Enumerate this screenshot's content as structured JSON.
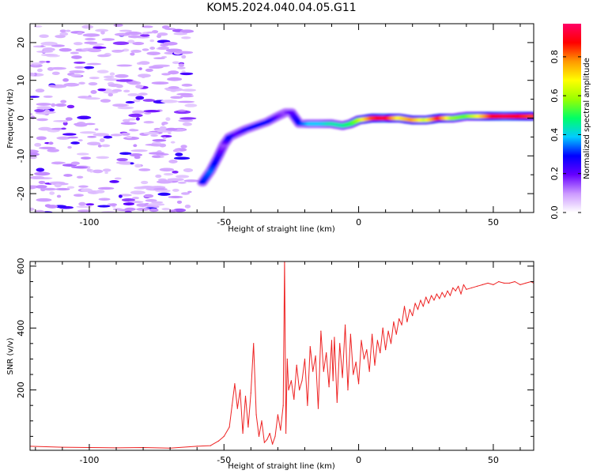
{
  "figure_title": "KOM5.2024.040.04.05.G11",
  "chart_data": [
    {
      "type": "heatmap",
      "title": "",
      "xlabel": "Height of straight line (km)",
      "ylabel": "Frequency (Hz)",
      "xlim": [
        -122,
        65
      ],
      "ylim": [
        -25,
        25
      ],
      "xticks": [
        -100,
        -50,
        0,
        50
      ],
      "yticks": [
        -20,
        -10,
        0,
        10,
        20
      ],
      "colorbar": {
        "label": "Normalized spectral amplitude",
        "range": [
          0,
          0.97
        ],
        "ticks": [
          0.0,
          0.2,
          0.4,
          0.6,
          0.8
        ],
        "colormap": [
          "#ffffff",
          "#cc99ff",
          "#6600ff",
          "#0000ff",
          "#00ccff",
          "#00ff66",
          "#99ff00",
          "#ffff00",
          "#ff9900",
          "#ff0000",
          "#ff0066"
        ]
      },
      "ridge": {
        "x": [
          -58,
          -55,
          -52,
          -50,
          -48,
          -45,
          -42,
          -38,
          -34,
          -30,
          -27,
          -25,
          -22,
          -18,
          -14,
          -10,
          -6,
          -3,
          0,
          5,
          10,
          15,
          20,
          25,
          30,
          35,
          40,
          45,
          50,
          55,
          60,
          65
        ],
        "y": [
          -17,
          -14,
          -10,
          -7,
          -5,
          -4,
          -3,
          -2,
          -1,
          0.5,
          1.5,
          1.5,
          -1.5,
          -1.5,
          -1.5,
          -1.5,
          -2,
          -1.5,
          -0.5,
          0,
          0,
          0,
          -0.5,
          -0.5,
          0,
          0,
          0.5,
          0.5,
          0.5,
          0.5,
          0.5,
          0.5
        ],
        "amplitude": [
          0.3,
          0.35,
          0.25,
          0.15,
          0.3,
          0.2,
          0.25,
          0.3,
          0.3,
          0.2,
          0.15,
          0.2,
          0.3,
          0.4,
          0.4,
          0.45,
          0.45,
          0.5,
          0.6,
          0.85,
          0.95,
          0.7,
          0.8,
          0.65,
          0.9,
          0.6,
          0.55,
          0.7,
          0.9,
          0.95,
          0.9,
          0.85
        ]
      }
    },
    {
      "type": "line",
      "title": "",
      "xlabel": "Height of straight line (km)",
      "ylabel": "SNR (v/v)",
      "xlim": [
        -122,
        65
      ],
      "ylim": [
        5,
        615
      ],
      "xticks": [
        -100,
        -50,
        0,
        50
      ],
      "yticks": [
        200,
        400,
        600
      ],
      "series": [
        {
          "color": "#ee2222",
          "x": [
            -122,
            -110,
            -100,
            -90,
            -80,
            -70,
            -60,
            -55,
            -52,
            -50,
            -48,
            -47,
            -46,
            -45,
            -44,
            -43,
            -42,
            -41,
            -40,
            -39,
            -38,
            -37,
            -36,
            -35,
            -34,
            -33,
            -32,
            -31,
            -30,
            -29,
            -28,
            -27.5,
            -27,
            -26.5,
            -26,
            -25,
            -24,
            -23,
            -22,
            -21,
            -20,
            -19,
            -18,
            -17,
            -16,
            -15,
            -14,
            -13,
            -12,
            -11,
            -10,
            -9.5,
            -9,
            -8,
            -7,
            -6,
            -5,
            -4,
            -3,
            -2,
            -1,
            0,
            1,
            2,
            3,
            4,
            5,
            6,
            7,
            8,
            9,
            10,
            11,
            12,
            13,
            14,
            15,
            16,
            17,
            18,
            19,
            20,
            21,
            22,
            23,
            24,
            25,
            26,
            27,
            28,
            29,
            30,
            31,
            32,
            33,
            34,
            35,
            36,
            37,
            38,
            39,
            40,
            42,
            44,
            46,
            48,
            50,
            52,
            54,
            56,
            58,
            60,
            62,
            64,
            65
          ],
          "y": [
            18,
            15,
            14,
            13,
            14,
            12,
            18,
            20,
            35,
            50,
            80,
            150,
            220,
            140,
            200,
            60,
            180,
            80,
            190,
            350,
            120,
            50,
            100,
            30,
            40,
            60,
            25,
            50,
            120,
            70,
            150,
            620,
            60,
            300,
            200,
            230,
            170,
            280,
            200,
            230,
            300,
            150,
            340,
            260,
            310,
            140,
            390,
            260,
            320,
            210,
            360,
            230,
            370,
            160,
            350,
            240,
            410,
            200,
            380,
            250,
            290,
            220,
            360,
            300,
            330,
            260,
            380,
            280,
            360,
            320,
            400,
            330,
            390,
            350,
            420,
            380,
            430,
            410,
            470,
            420,
            460,
            440,
            480,
            460,
            490,
            470,
            500,
            480,
            505,
            490,
            510,
            495,
            515,
            500,
            520,
            505,
            530,
            520,
            535,
            510,
            540,
            525,
            530,
            535,
            540,
            545,
            540,
            550,
            545,
            545,
            550,
            540,
            545,
            550,
            545
          ]
        }
      ]
    }
  ]
}
